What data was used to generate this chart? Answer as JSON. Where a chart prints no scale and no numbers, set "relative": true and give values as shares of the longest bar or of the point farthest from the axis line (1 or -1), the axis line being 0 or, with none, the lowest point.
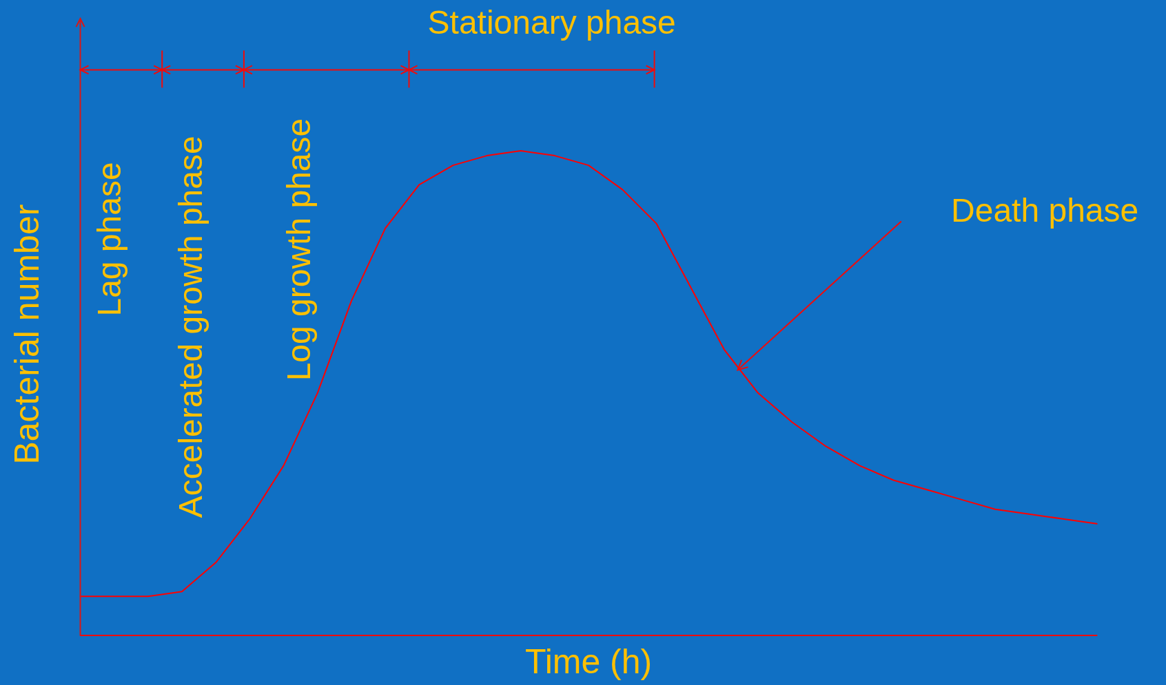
{
  "chart_data": {
    "type": "line",
    "relative": true,
    "xlabel": "Time (h)",
    "ylabel": "Bacterial number",
    "marker": "none",
    "line_style": "solid",
    "categories": [
      null,
      null,
      null,
      null,
      null,
      null,
      null,
      null,
      null,
      null,
      null,
      null,
      null,
      null,
      null,
      null,
      null,
      null,
      null,
      null,
      null,
      null,
      null,
      null,
      null,
      null,
      null,
      null,
      null,
      null,
      null
    ],
    "series": [
      {
        "color": "#ff0000",
        "values": [
          0.08,
          0.08,
          0.08,
          0.09,
          0.15,
          0.24,
          0.35,
          0.5,
          0.69,
          0.84,
          0.93,
          0.97,
          0.99,
          1,
          0.99,
          0.97,
          0.92,
          0.85,
          0.72,
          0.59,
          0.5,
          0.44,
          0.39,
          0.35,
          0.32,
          0.3,
          0.28,
          0.26,
          0.25,
          0.24,
          0.23
        ]
      }
    ],
    "annotations": [
      "Stationary phase",
      "Lag phase",
      "Accelerated growth phase",
      "Log growth phase",
      "Death phase"
    ]
  }
}
